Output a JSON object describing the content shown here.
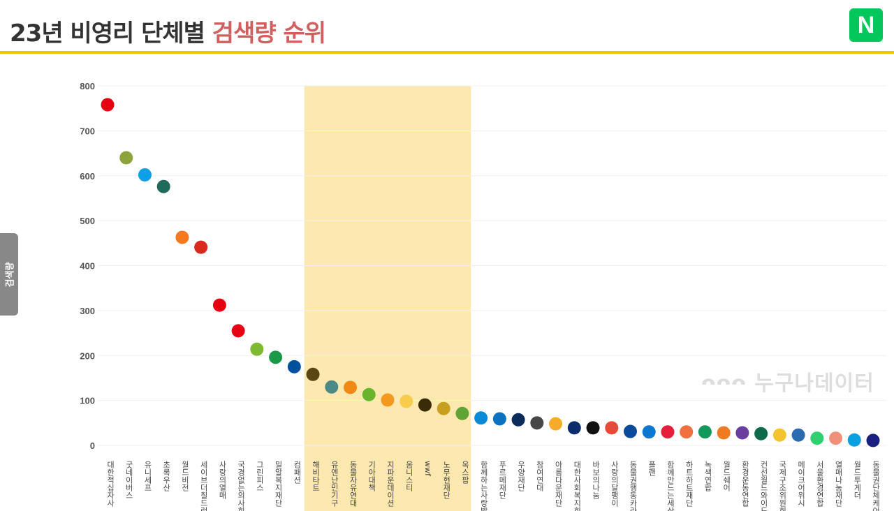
{
  "header": {
    "title_main": "23년 비영리 단체별 ",
    "title_highlight": "검색량 순위",
    "logo": "N"
  },
  "watermark": "ᴖᴖᴖ 누구나데이터",
  "chart_data": {
    "type": "scatter",
    "title": "23년 비영리 단체별 검색량 순위",
    "ylabel": "검색량",
    "ylim": [
      0,
      800
    ],
    "yticks": [
      0,
      100,
      200,
      300,
      400,
      500,
      600,
      700,
      800
    ],
    "grid": true,
    "highlight_range": [
      "해비타트",
      "옥스팜"
    ],
    "categories": [
      "대한적십자사",
      "굿네이버스",
      "유니세프",
      "초록우산",
      "월드비전",
      "세이브더칠드런",
      "사랑의열매",
      "국경없는의사회",
      "그린피스",
      "밀알복지재단",
      "컴패션",
      "해비타트",
      "유엔난민기구",
      "동물자유연대",
      "기아대책",
      "지파운데이션",
      "옴니스티",
      "wwf",
      "노무현재단",
      "옥스팜",
      "함께하는사랑밭",
      "푸르메재단",
      "우양재단",
      "참여연대",
      "아름다운재단",
      "대한사회복지회",
      "바보의나눔",
      "사랑의달팽이",
      "동물권행동카라",
      "플랜",
      "함께만드는세상",
      "하트하트재단",
      "녹색연합",
      "월드쉐어",
      "환경운동연합",
      "컨선월드와이드",
      "국제구조위원회",
      "메이크어위시",
      "서울환경연합",
      "열매나눔재단",
      "월드투게더",
      "동물권단체케어"
    ],
    "values": [
      758,
      640,
      602,
      576,
      463,
      441,
      312,
      255,
      214,
      196,
      175,
      158,
      130,
      129,
      113,
      101,
      98,
      90,
      82,
      71,
      61,
      59,
      57,
      50,
      48,
      39,
      39,
      39,
      31,
      30,
      30,
      30,
      30,
      28,
      28,
      26,
      23,
      23,
      16,
      16,
      12,
      11
    ],
    "colors": [
      "#e60012",
      "#8da43a",
      "#0da0e6",
      "#1e6b5a",
      "#f47920",
      "#d9281e",
      "#e60012",
      "#e60012",
      "#7dba2f",
      "#1a9a48",
      "#0050a0",
      "#5a4612",
      "#4c8a86",
      "#f08a14",
      "#6ab42d",
      "#f39a1e",
      "#f6cc4a",
      "#3a2c06",
      "#c8a020",
      "#61a436",
      "#0a8ad6",
      "#0a72c0",
      "#0a2c5a",
      "#474747",
      "#f6ac2a",
      "#0a2c6a",
      "#111111",
      "#e84a3a",
      "#0a4a9a",
      "#0a78d0",
      "#e61e3c",
      "#f07040",
      "#11985a",
      "#f07a22",
      "#6a3ea0",
      "#0a6a4a",
      "#f4c430",
      "#2a6ab0",
      "#30d070",
      "#f0907a",
      "#0aa0e0",
      "#1a2080"
    ]
  }
}
